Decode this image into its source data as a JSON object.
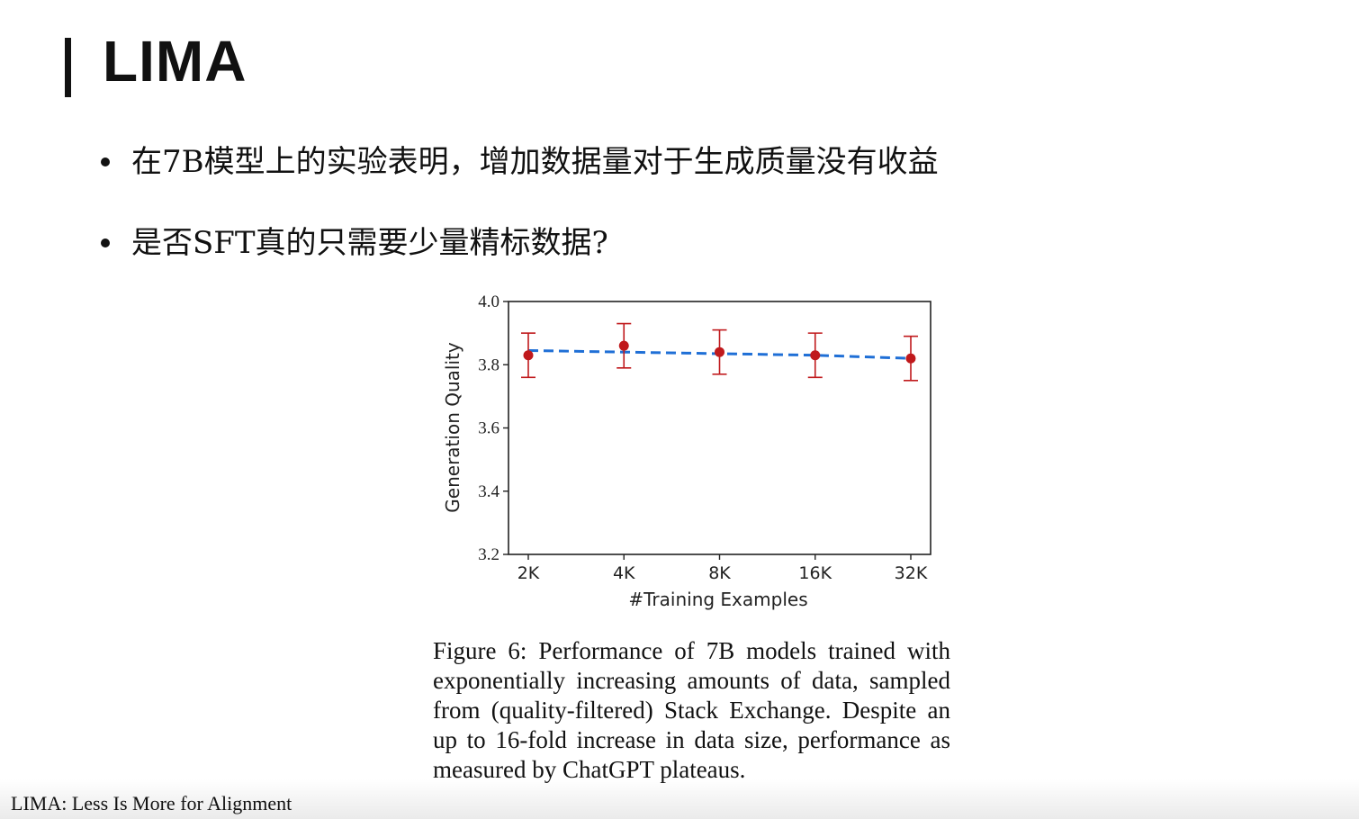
{
  "slide": {
    "title": "LIMA",
    "bullets": [
      "在7B模型上的实验表明，增加数据量对于生成质量没有收益",
      "是否SFT真的只需要少量精标数据?"
    ],
    "caption": "Figure 6:  Performance of 7B models trained with exponentially increasing amounts of data, sampled from (quality-filtered) Stack Exchange. Despite an up to 16-fold increase in data size, performance as measured by ChatGPT plateaus.",
    "footer": "LIMA: Less Is More for Alignment"
  },
  "chart_data": {
    "type": "line",
    "title": "",
    "xlabel": "#Training Examples",
    "ylabel": "Generation Quality",
    "categories": [
      "2K",
      "4K",
      "8K",
      "16K",
      "32K"
    ],
    "ylim": [
      3.2,
      4.0
    ],
    "yticks": [
      "3.2",
      "3.4",
      "3.6",
      "3.8",
      "4.0"
    ],
    "grid": false,
    "series": [
      {
        "values": [
          3.83,
          3.86,
          3.84,
          3.83,
          3.82
        ],
        "error_low": [
          3.76,
          3.79,
          3.77,
          3.76,
          3.75
        ],
        "error_high": [
          3.9,
          3.93,
          3.91,
          3.9,
          3.89
        ],
        "color": "#c0191c",
        "style": "points-with-error-bars"
      },
      {
        "values": [
          3.845,
          3.84,
          3.835,
          3.83,
          3.82
        ],
        "color": "#1f6fd6",
        "style": "dashed-trend"
      }
    ]
  }
}
